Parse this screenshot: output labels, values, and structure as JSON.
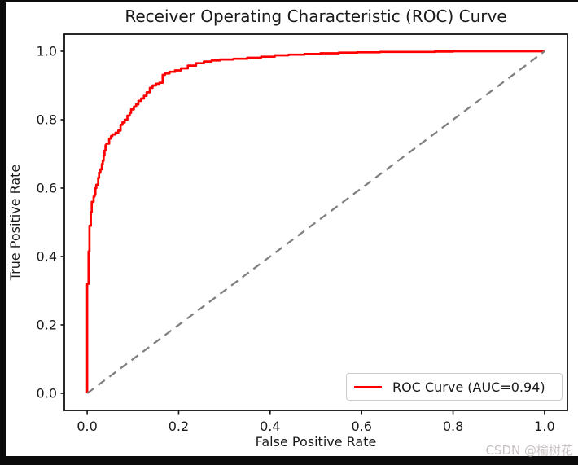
{
  "watermark": {
    "text": "CSDN @榆树花",
    "color": "#c9c1c1"
  },
  "frame_color": "#0b0b0b",
  "chart_data": {
    "type": "line",
    "title": "Receiver Operating Characteristic (ROC) Curve",
    "xlabel": "False Positive Rate",
    "ylabel": "True Positive Rate",
    "xlim": [
      -0.05,
      1.05
    ],
    "ylim": [
      -0.05,
      1.05
    ],
    "xticks": [
      0.0,
      0.2,
      0.4,
      0.6,
      0.8,
      1.0
    ],
    "yticks": [
      0.0,
      0.2,
      0.4,
      0.6,
      0.8,
      1.0
    ],
    "grid": false,
    "auc": 0.94,
    "legend": {
      "position": "lower right",
      "entries": [
        "ROC Curve (AUC=0.94)"
      ]
    },
    "colors": {
      "roc": "#ff0000",
      "chance": "#808080",
      "spine": "#111111"
    },
    "series": [
      {
        "name": "ROC Curve (AUC=0.94)",
        "color": "#ff0000",
        "line_style": "solid",
        "line_width": 2.7,
        "step": true,
        "points": [
          [
            0.0,
            0.0
          ],
          [
            0.0,
            0.31
          ],
          [
            0.003,
            0.32
          ],
          [
            0.003,
            0.405
          ],
          [
            0.005,
            0.415
          ],
          [
            0.005,
            0.48
          ],
          [
            0.008,
            0.49
          ],
          [
            0.008,
            0.52
          ],
          [
            0.01,
            0.53
          ],
          [
            0.01,
            0.555
          ],
          [
            0.014,
            0.56
          ],
          [
            0.016,
            0.575
          ],
          [
            0.018,
            0.58
          ],
          [
            0.02,
            0.6
          ],
          [
            0.024,
            0.61
          ],
          [
            0.026,
            0.63
          ],
          [
            0.029,
            0.645
          ],
          [
            0.032,
            0.655
          ],
          [
            0.034,
            0.67
          ],
          [
            0.036,
            0.68
          ],
          [
            0.038,
            0.695
          ],
          [
            0.04,
            0.71
          ],
          [
            0.042,
            0.725
          ],
          [
            0.048,
            0.73
          ],
          [
            0.052,
            0.745
          ],
          [
            0.055,
            0.752
          ],
          [
            0.062,
            0.757
          ],
          [
            0.068,
            0.762
          ],
          [
            0.073,
            0.768
          ],
          [
            0.077,
            0.785
          ],
          [
            0.082,
            0.792
          ],
          [
            0.088,
            0.8
          ],
          [
            0.093,
            0.812
          ],
          [
            0.096,
            0.82
          ],
          [
            0.102,
            0.83
          ],
          [
            0.107,
            0.838
          ],
          [
            0.112,
            0.845
          ],
          [
            0.118,
            0.855
          ],
          [
            0.124,
            0.862
          ],
          [
            0.13,
            0.87
          ],
          [
            0.137,
            0.88
          ],
          [
            0.143,
            0.893
          ],
          [
            0.15,
            0.9
          ],
          [
            0.158,
            0.905
          ],
          [
            0.165,
            0.908
          ],
          [
            0.17,
            0.931
          ],
          [
            0.18,
            0.935
          ],
          [
            0.192,
            0.94
          ],
          [
            0.205,
            0.944
          ],
          [
            0.22,
            0.95
          ],
          [
            0.238,
            0.958
          ],
          [
            0.255,
            0.965
          ],
          [
            0.272,
            0.97
          ],
          [
            0.29,
            0.973
          ],
          [
            0.32,
            0.976
          ],
          [
            0.35,
            0.978
          ],
          [
            0.38,
            0.981
          ],
          [
            0.41,
            0.984
          ],
          [
            0.44,
            0.988
          ],
          [
            0.475,
            0.99
          ],
          [
            0.51,
            0.992
          ],
          [
            0.55,
            0.994
          ],
          [
            0.59,
            0.996
          ],
          [
            0.64,
            0.997
          ],
          [
            0.7,
            0.998
          ],
          [
            0.76,
            0.998
          ],
          [
            0.8,
            0.999
          ],
          [
            0.845,
            1.0
          ],
          [
            1.0,
            1.0
          ]
        ]
      },
      {
        "name": "chance_line",
        "color": "#808080",
        "line_style": "dashed",
        "line_width": 2.3,
        "step": false,
        "points": [
          [
            0.0,
            0.0
          ],
          [
            1.0,
            1.0
          ]
        ]
      }
    ]
  }
}
